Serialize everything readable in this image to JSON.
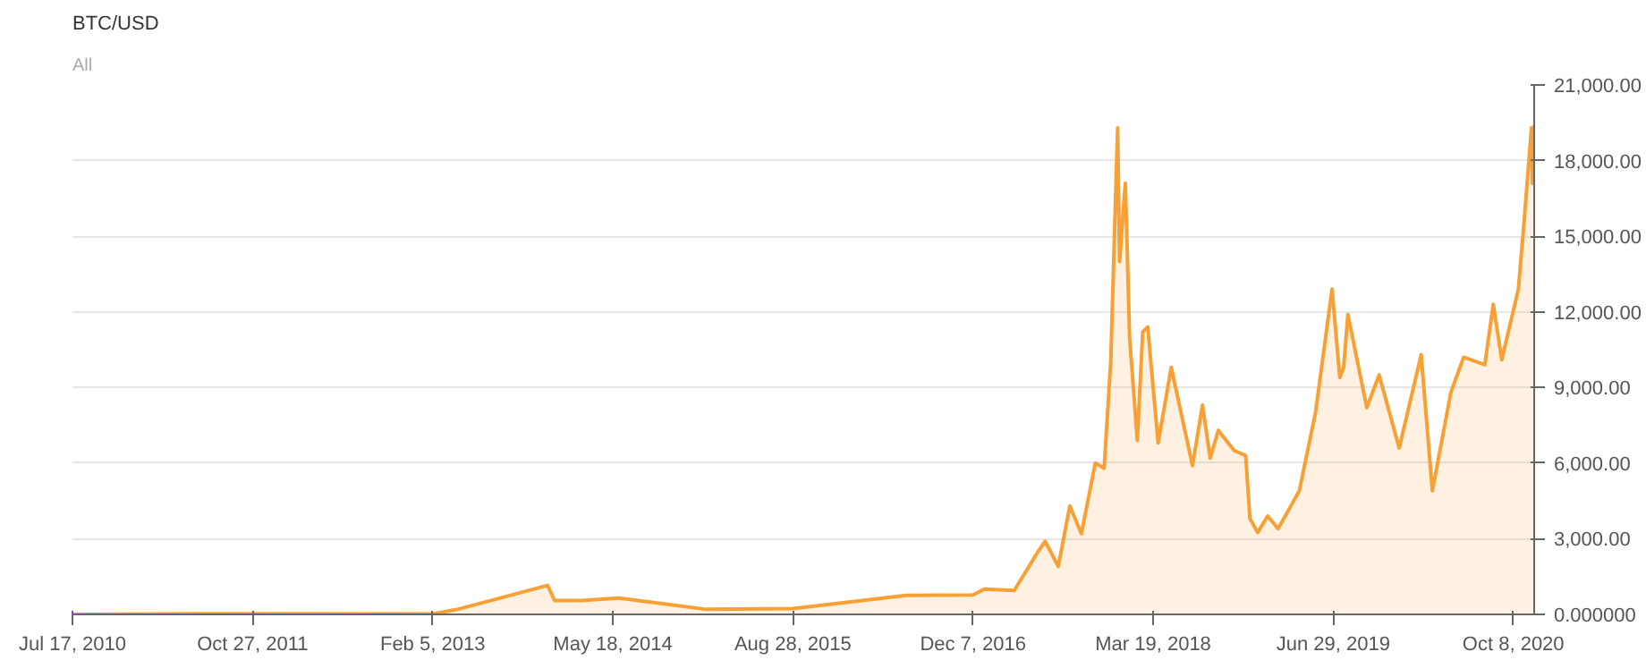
{
  "chart_data": {
    "type": "area",
    "title": "BTC/USD",
    "subtitle": "All",
    "x": [
      "2010-07-17",
      "2011-06-08",
      "2013-02-05",
      "2013-04-10",
      "2013-11-30",
      "2013-12-18",
      "2014-02-25",
      "2014-06-03",
      "2015-01-14",
      "2015-08-28",
      "2016-06-17",
      "2016-12-07",
      "2017-01-05",
      "2017-03-24",
      "2017-05-25",
      "2017-06-12",
      "2017-07-16",
      "2017-08-15",
      "2017-09-14",
      "2017-10-20",
      "2017-11-12",
      "2017-11-29",
      "2017-12-17",
      "2017-12-22",
      "2018-01-06",
      "2018-01-17",
      "2018-02-06",
      "2018-02-20",
      "2018-03-05",
      "2018-04-01",
      "2018-05-05",
      "2018-06-29",
      "2018-07-25",
      "2018-08-14",
      "2018-09-04",
      "2018-10-15",
      "2018-11-14",
      "2018-11-25",
      "2018-12-15",
      "2019-01-10",
      "2019-02-06",
      "2019-04-02",
      "2019-05-14",
      "2019-06-26",
      "2019-07-16",
      "2019-07-26",
      "2019-08-06",
      "2019-09-24",
      "2019-10-26",
      "2019-12-17",
      "2020-02-12",
      "2020-03-12",
      "2020-04-29",
      "2020-06-01",
      "2020-07-26",
      "2020-08-17",
      "2020-09-08",
      "2020-10-21",
      "2020-11-05",
      "2020-11-24",
      "2020-11-26",
      "2020-12-01"
    ],
    "series": [
      {
        "color": "#f7a035",
        "values": [
          0,
          30,
          20,
          200,
          1150,
          550,
          550,
          650,
          200,
          230,
          750,
          770,
          1000,
          950,
          2500,
          2900,
          1900,
          4300,
          3200,
          6000,
          5800,
          10000,
          19300,
          14000,
          17100,
          11000,
          6900,
          11200,
          11400,
          6800,
          9800,
          5900,
          8300,
          6200,
          7300,
          6500,
          6300,
          3800,
          3250,
          3900,
          3400,
          4900,
          8000,
          12900,
          9400,
          9800,
          11900,
          8200,
          9500,
          6600,
          10300,
          4900,
          8800,
          10200,
          9900,
          12300,
          10100,
          12900,
          15600,
          19300,
          17100,
          19400
        ]
      }
    ],
    "xlim": [
      "2010-07-17",
      "2020-12-01"
    ],
    "xticks": [
      {
        "value": "2010-07-17",
        "label": "Jul 17, 2010"
      },
      {
        "value": "2011-10-27",
        "label": "Oct 27, 2011"
      },
      {
        "value": "2013-02-05",
        "label": "Feb 5, 2013"
      },
      {
        "value": "2014-05-18",
        "label": "May 18, 2014"
      },
      {
        "value": "2015-08-28",
        "label": "Aug 28, 2015"
      },
      {
        "value": "2016-12-07",
        "label": "Dec 7, 2016"
      },
      {
        "value": "2018-03-19",
        "label": "Mar 19, 2018"
      },
      {
        "value": "2019-06-29",
        "label": "Jun 29, 2019"
      },
      {
        "value": "2020-10-08",
        "label": "Oct 8, 2020"
      }
    ],
    "ylim": [
      0,
      21000
    ],
    "yticks": [
      {
        "value": 0,
        "label": "0.000000"
      },
      {
        "value": 3000,
        "label": "3,000.00"
      },
      {
        "value": 6000,
        "label": "6,000.00"
      },
      {
        "value": 9000,
        "label": "9,000.00"
      },
      {
        "value": 12000,
        "label": "12,000.00"
      },
      {
        "value": 15000,
        "label": "15,000.00"
      },
      {
        "value": 18000,
        "label": "18,000.00"
      },
      {
        "value": 21000,
        "label": "21,000.00"
      }
    ],
    "grid": "y"
  }
}
